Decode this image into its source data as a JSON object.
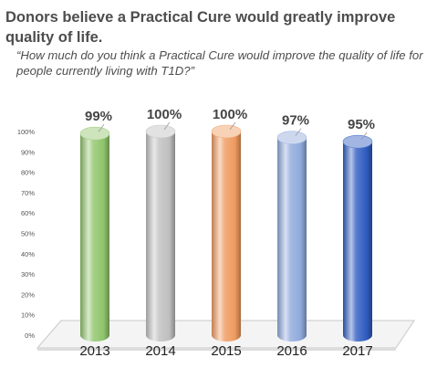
{
  "chart_data": {
    "type": "bar",
    "title": "Donors believe a Practical Cure would greatly improve quality of life.",
    "subtitle": "“How much do you think a Practical Cure would improve the quality of life for people currently living with T1D?”",
    "categories": [
      "2013",
      "2014",
      "2015",
      "2016",
      "2017"
    ],
    "values": [
      99,
      100,
      100,
      97,
      95
    ],
    "value_labels": [
      "99%",
      "100%",
      "100%",
      "97%",
      "95%"
    ],
    "y_ticks": [
      "0%",
      "10%",
      "20%",
      "30%",
      "40%",
      "50%",
      "60%",
      "70%",
      "80%",
      "90%",
      "100%"
    ],
    "ylim": [
      0,
      100
    ],
    "bar_colors": [
      "#8fc46a",
      "#bfbfbf",
      "#ef9a5e",
      "#8fa9dc",
      "#2f5cc0"
    ],
    "grid": false,
    "legend": "none"
  }
}
